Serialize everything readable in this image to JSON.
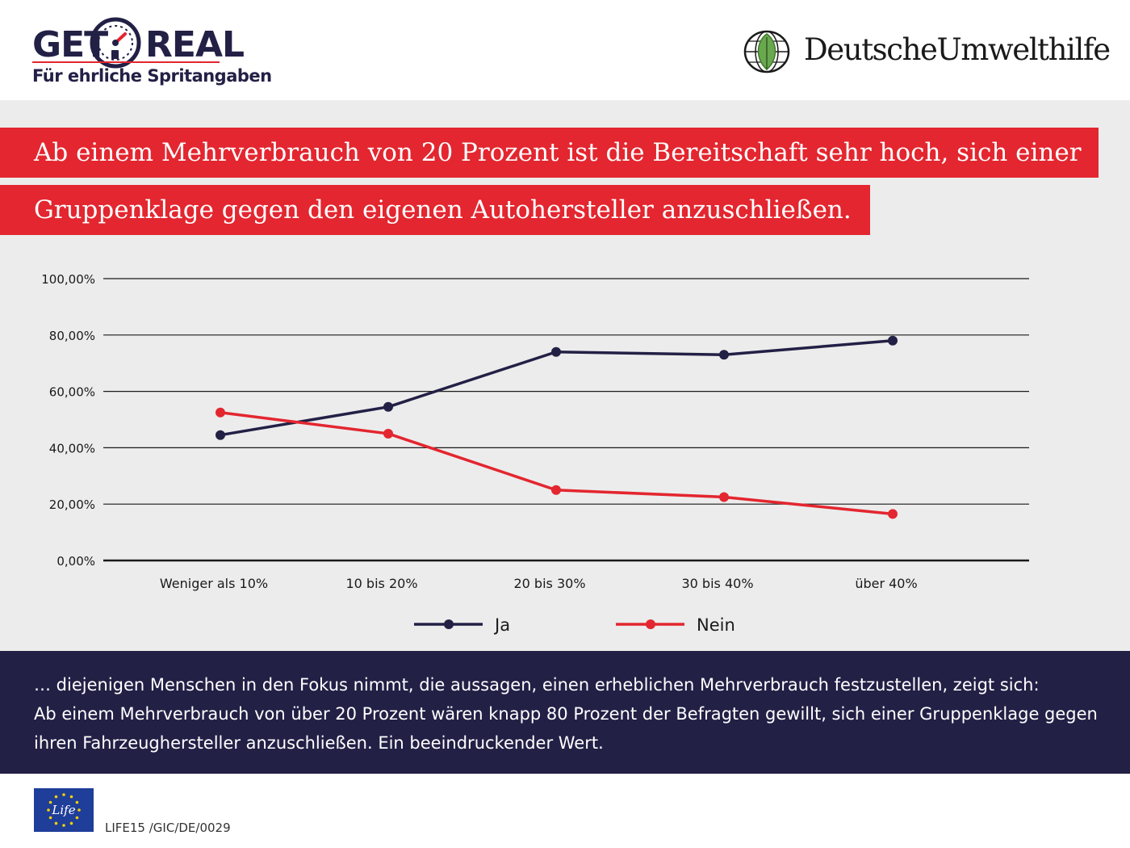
{
  "header": {
    "logo_left": {
      "word1": "GET",
      "word2": "REAL",
      "subtitle": "Für ehrliche Spritangaben",
      "icon": "fuel-gauge-icon",
      "accent": "#e3262f",
      "navy": "#232046"
    },
    "logo_right": {
      "name": "DeutscheUmwelthilfe",
      "icon": "leaf-globe-icon",
      "leaf_color": "#6aa84f"
    }
  },
  "headline": {
    "line1": "Ab einem Mehrverbrauch von 20 Prozent ist die Bereitschaft sehr hoch, sich einer",
    "line2": "Gruppenklage gegen den eigenen Autohersteller anzuschließen.",
    "bg_color": "#e3262f"
  },
  "chart_data": {
    "type": "line",
    "categories": [
      "Weniger als 10%",
      "10 bis 20%",
      "20 bis 30%",
      "30 bis 40%",
      "über 40%"
    ],
    "series": [
      {
        "name": "Ja",
        "values": [
          44.5,
          54.5,
          74,
          73,
          78
        ],
        "color": "#232046"
      },
      {
        "name": "Nein",
        "values": [
          52.5,
          45,
          25,
          22.5,
          16.5
        ],
        "color": "#e3262f"
      }
    ],
    "yticks": [
      "100,00%",
      "80,00%",
      "60,00%",
      "40,00%",
      "20,00%",
      "0,00%"
    ],
    "ylim": [
      0,
      100
    ],
    "grid": true,
    "legend": "bottom-center"
  },
  "summary": {
    "line1": "… diejenigen Menschen in den Fokus nimmt, die aussagen, einen erheblichen Mehrverbrauch festzustellen, zeigt sich:",
    "line2": "Ab einem Mehrverbrauch von über 20 Prozent wären knapp 80 Prozent der Befragten gewillt, sich einer Gruppenklage gegen",
    "line3": "ihren Fahrzeughersteller anzuschließen. Ein beeindruckender Wert."
  },
  "footer": {
    "flag_text": "Life",
    "code": "LIFE15 /GIC/DE/0029",
    "flag_icon": "eu-life-flag-icon"
  }
}
